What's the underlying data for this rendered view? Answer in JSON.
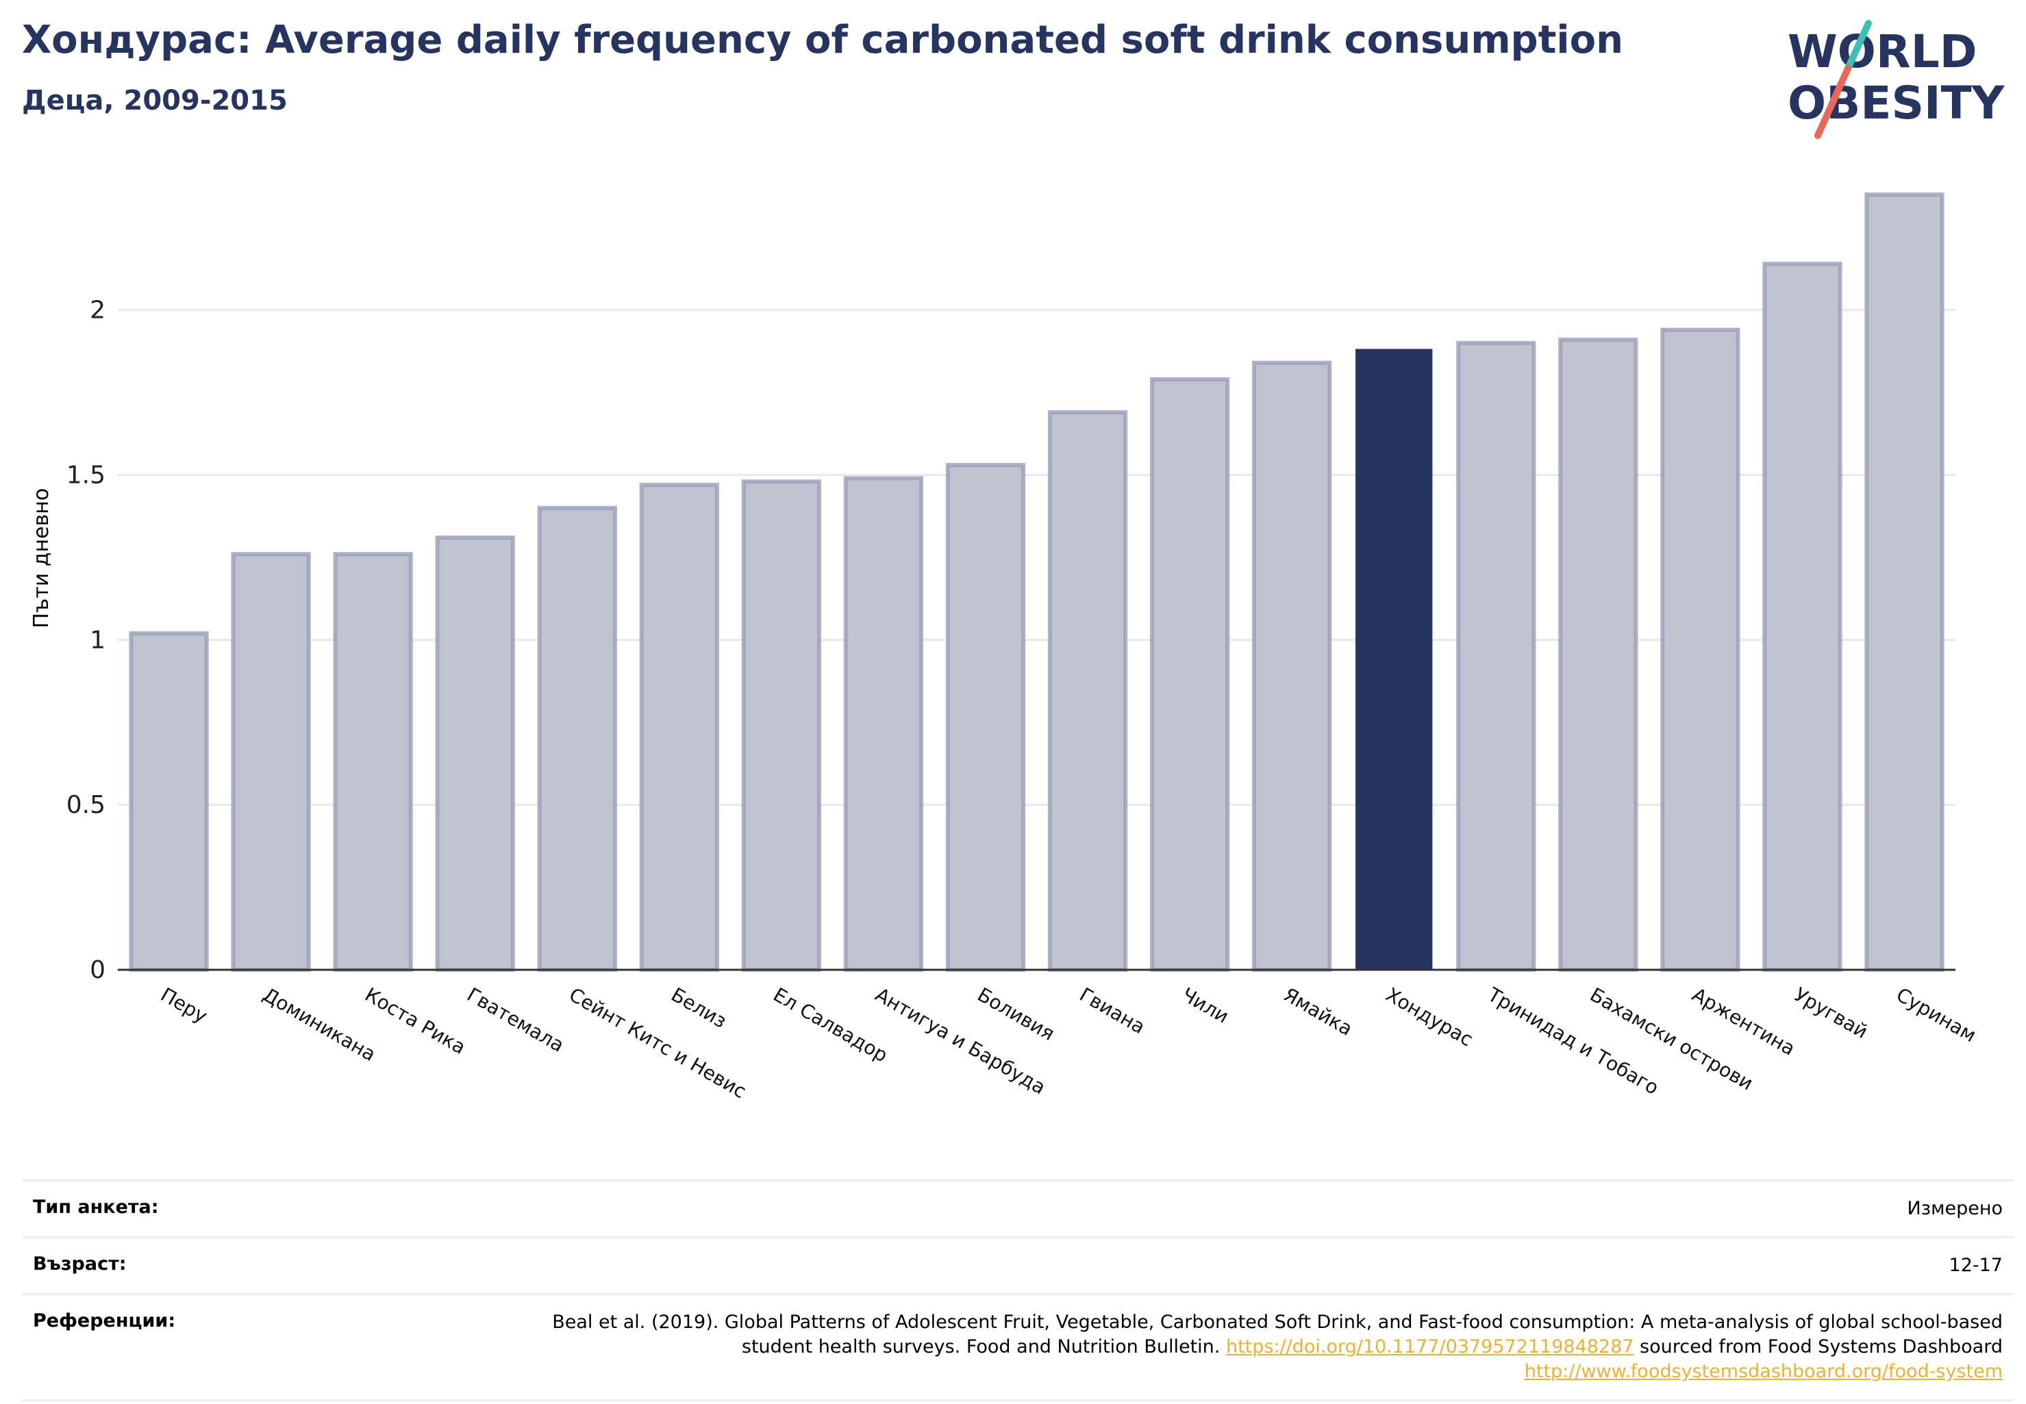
{
  "header": {
    "title": "Хондурас: Average daily frequency of carbonated soft drink consumption",
    "subtitle": "Деца, 2009-2015"
  },
  "logo": {
    "line1": "WORLD",
    "line2": "OBESITY",
    "colors": {
      "text": "#283460",
      "slash_top": "#3fbfb4",
      "slash_bottom": "#e8685a"
    }
  },
  "chart_data": {
    "type": "bar",
    "categories": [
      "Перу",
      "Доминикана",
      "Коста Рика",
      "Гватемала",
      "Сейнт Китс и Невис",
      "Белиз",
      "Ел Салвадор",
      "Антигуа и Барбуда",
      "Боливия",
      "Гвиана",
      "Чили",
      "Ямайка",
      "Хондурас",
      "Тринидад и Тобаго",
      "Бахамски острови",
      "Аржентина",
      "Уругвай",
      "Суринам"
    ],
    "values": [
      1.02,
      1.26,
      1.26,
      1.31,
      1.4,
      1.47,
      1.48,
      1.49,
      1.53,
      1.69,
      1.79,
      1.84,
      1.88,
      1.9,
      1.91,
      1.94,
      2.14,
      2.35
    ],
    "highlight": "Хондурас",
    "ylabel": "Пъти дневно",
    "xlabel": "",
    "ylim": [
      0,
      2.4
    ],
    "yticks": [
      0,
      0.5,
      1,
      1.5,
      2
    ],
    "ytick_labels": [
      "0",
      "0.5",
      "1",
      "1.5",
      "2"
    ],
    "grid": true,
    "colors": {
      "bar": "#bfc2cf",
      "bar_edge": "#9a9fb6",
      "highlight": "#283460",
      "grid": "#e8e9ee",
      "axis": "#333333"
    }
  },
  "footer": {
    "survey_label": "Тип анкета:",
    "survey_value": "Измерено",
    "age_label": "Възраст:",
    "age_value": "12-17",
    "ref_label": "Референции:",
    "ref_text_1": "Beal et al. (2019). Global Patterns of Adolescent Fruit, Vegetable, Carbonated Soft Drink, and Fast-food consumption: A meta-analysis of global school-based student health surveys. Food and Nutrition Bulletin. ",
    "ref_link_1": "https://doi.org/10.1177/0379572119848287",
    "ref_text_2": " sourced from Food Systems Dashboard ",
    "ref_link_2": "http://www.foodsystemsdashboard.org/food-system"
  }
}
